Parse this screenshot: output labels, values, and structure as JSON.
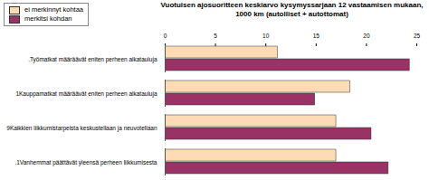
{
  "chart_data": {
    "type": "bar",
    "orientation": "horizontal",
    "title": "Vuotuisen ajosuoritteen keskiarvo kysymyssarjaan 12 vastaamisen mukaan, 1000 km (autolliset + autottomat)",
    "categories": [
      ".Työmatkat määräävät eniten perheen aikatauluja",
      "1Kauppamatkat määräävät eniten perheen aikatauluja",
      "9Kaikkien liikkumistarpeista keskustellaan ja neuvotellaan",
      ".1Vanhemmat päättävät yleensä perheen liikkumisesta"
    ],
    "series": [
      {
        "name": "ei merkinnyt kohtaa",
        "color": "#fddcb5",
        "values": [
          11.2,
          18.4,
          17.0,
          17.0
        ]
      },
      {
        "name": "merkitsi kohdan",
        "color": "#993366",
        "values": [
          24.3,
          14.9,
          20.5,
          22.2
        ]
      }
    ],
    "xlim": [
      0,
      25
    ],
    "xticks": [
      0,
      5,
      10,
      15,
      20,
      25
    ],
    "grid": false,
    "legend": "top-left"
  }
}
